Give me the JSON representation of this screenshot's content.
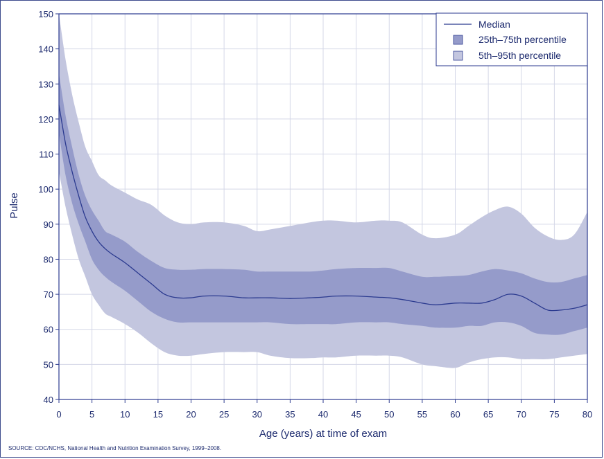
{
  "chart_data": {
    "type": "area",
    "xlabel": "Age (years) at time of exam",
    "ylabel": "Pulse",
    "xlim": [
      0,
      80
    ],
    "ylim": [
      40,
      150
    ],
    "xticks": [
      0,
      5,
      10,
      15,
      20,
      25,
      30,
      35,
      40,
      45,
      50,
      55,
      60,
      65,
      70,
      75,
      80
    ],
    "yticks": [
      40,
      50,
      60,
      70,
      80,
      90,
      100,
      110,
      120,
      130,
      140,
      150
    ],
    "grid": true,
    "legend_position": "top-right",
    "x": [
      0,
      1,
      2,
      3,
      4,
      5,
      6,
      7,
      8,
      10,
      12,
      14,
      16,
      18,
      20,
      22,
      25,
      28,
      30,
      32,
      35,
      38,
      40,
      42,
      45,
      48,
      50,
      52,
      55,
      57,
      60,
      62,
      64,
      66,
      68,
      70,
      72,
      74,
      76,
      78,
      80
    ],
    "series": [
      {
        "name": "Median",
        "kind": "line",
        "values": [
          124,
          113,
          105,
          98,
          92,
          88,
          85,
          83,
          81.5,
          79,
          76,
          73,
          70,
          69,
          69,
          69.5,
          69.5,
          69,
          69,
          69,
          68.8,
          69,
          69.2,
          69.5,
          69.5,
          69.2,
          69,
          68.5,
          67.5,
          67,
          67.5,
          67.5,
          67.5,
          68.5,
          70,
          69.5,
          67.5,
          65.5,
          65.5,
          66,
          67
        ]
      },
      {
        "name": "25th–75th percentile",
        "kind": "band",
        "lower": [
          116,
          104,
          96,
          90,
          85,
          80,
          77,
          75,
          73.5,
          71,
          68,
          65,
          63,
          62,
          62,
          62,
          62,
          62,
          62,
          62,
          61.5,
          61.5,
          61.5,
          61.5,
          62,
          62,
          62,
          61.5,
          61,
          60.5,
          60.5,
          61,
          61,
          62,
          62,
          61,
          59,
          58.5,
          58.5,
          59.5,
          60.5
        ],
        "upper": [
          133,
          121,
          112,
          104,
          98,
          94,
          91,
          88,
          87,
          85,
          82,
          79.5,
          77.5,
          77,
          77,
          77.2,
          77.2,
          77,
          76.5,
          76.5,
          76.5,
          76.5,
          76.8,
          77.2,
          77.5,
          77.5,
          77.5,
          76.5,
          75,
          75,
          75.2,
          75.5,
          76.5,
          77.2,
          76.8,
          76,
          74.5,
          73.5,
          73.5,
          74.5,
          75.5
        ]
      },
      {
        "name": "5th–95th percentile",
        "kind": "band",
        "lower": [
          105,
          95,
          87,
          80,
          75,
          70,
          67,
          64.5,
          63.5,
          61.5,
          59,
          56,
          53.5,
          52.5,
          52.5,
          53,
          53.5,
          53.5,
          53.5,
          52.5,
          51.8,
          51.8,
          52,
          52,
          52.5,
          52.5,
          52.5,
          52,
          50,
          49.5,
          49,
          50.5,
          51.5,
          52,
          52,
          51.5,
          51.5,
          51.5,
          52,
          52.5,
          53
        ]
      },
      {
        "name": "5th–95th percentile upper",
        "kind": "band-upper",
        "values": [
          150,
          137,
          127,
          119,
          112,
          108,
          104,
          102.5,
          101,
          99,
          97,
          95.5,
          92.5,
          90.5,
          90,
          90.5,
          90.5,
          89.5,
          88,
          88.5,
          89.5,
          90.5,
          91,
          91,
          90.5,
          91,
          91,
          90.5,
          87,
          86,
          87,
          89.5,
          92,
          94,
          95,
          93,
          89,
          86.5,
          85.5,
          87,
          93.5
        ]
      }
    ],
    "colors": {
      "outer_band": "#c3c6df",
      "inner_band": "#959bca",
      "median_line": "#2b3a8f",
      "grid": "#d4d7e7",
      "axis": "#2b3a8f",
      "text": "#1c2a6e"
    }
  },
  "legend": {
    "median": "Median",
    "iqr": "25th–75th percentile",
    "outer": "5th–95th percentile"
  },
  "source_note": "SOURCE: CDC/NCHS, National Health and Nutrition Examination Survey, 1999–2008."
}
